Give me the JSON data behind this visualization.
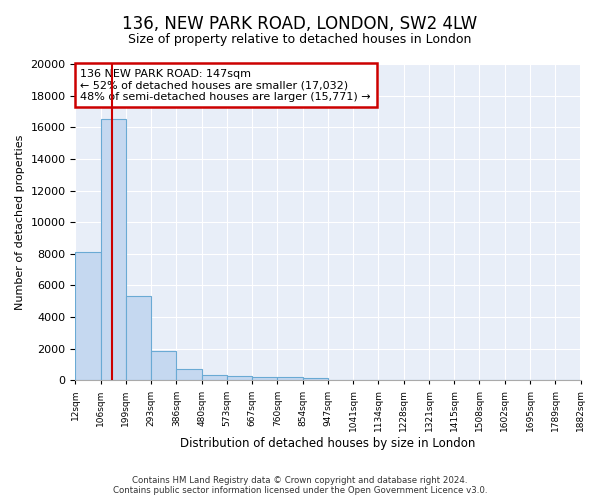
{
  "title": "136, NEW PARK ROAD, LONDON, SW2 4LW",
  "subtitle": "Size of property relative to detached houses in London",
  "xlabel": "Distribution of detached houses by size in London",
  "ylabel": "Number of detached properties",
  "footer_line1": "Contains HM Land Registry data © Crown copyright and database right 2024.",
  "footer_line2": "Contains public sector information licensed under the Open Government Licence v3.0.",
  "bin_labels": [
    "12sqm",
    "106sqm",
    "199sqm",
    "293sqm",
    "386sqm",
    "480sqm",
    "573sqm",
    "667sqm",
    "760sqm",
    "854sqm",
    "947sqm",
    "1041sqm",
    "1134sqm",
    "1228sqm",
    "1321sqm",
    "1415sqm",
    "1508sqm",
    "1602sqm",
    "1695sqm",
    "1789sqm",
    "1882sqm"
  ],
  "bar_values": [
    8100,
    16500,
    5300,
    1850,
    700,
    320,
    240,
    210,
    200,
    130,
    50,
    20,
    10,
    8,
    5,
    3,
    2,
    1,
    1,
    1
  ],
  "bar_color": "#c5d8f0",
  "bar_edge_color": "#6aaad4",
  "ylim": [
    0,
    20000
  ],
  "yticks": [
    0,
    2000,
    4000,
    6000,
    8000,
    10000,
    12000,
    14000,
    16000,
    18000,
    20000
  ],
  "bin_edges_numeric": [
    12,
    106,
    199,
    293,
    386,
    480,
    573,
    667,
    760,
    854,
    947,
    1041,
    1134,
    1228,
    1321,
    1415,
    1508,
    1602,
    1695,
    1789,
    1882
  ],
  "property_size": 147,
  "red_line_color": "#cc0000",
  "annotation_text_line1": "136 NEW PARK ROAD: 147sqm",
  "annotation_text_line2": "← 52% of detached houses are smaller (17,032)",
  "annotation_text_line3": "48% of semi-detached houses are larger (15,771) →",
  "annotation_box_color": "#cc0000",
  "figure_bg_color": "#ffffff",
  "axes_bg_color": "#e8eef8",
  "grid_color": "#ffffff",
  "title_fontsize": 12,
  "subtitle_fontsize": 9
}
